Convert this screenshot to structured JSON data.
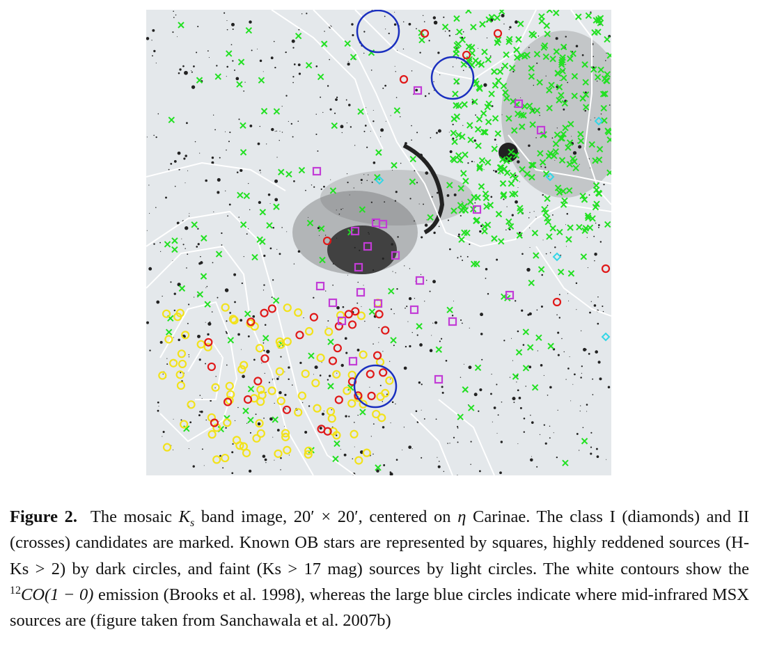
{
  "figure": {
    "label": "Figure 2.",
    "caption": [
      "The mosaic",
      "K",
      "s",
      "band image, 20′ × 20′, centered on",
      "η",
      "Carinae. The class I (diamonds) and II (crosses) candidates are marked. Known OB stars are represented by squares, highly reddened sources (H-Ks > 2) by dark circles, and faint (Ks > 17 mag) sources by light circles. The white contours show the",
      "12",
      "CO(1 − 0)",
      "emission (Brooks et al. 1998), whereas the large blue circles indicate where mid-infrared MSX sources are (figure taken from Sanchawala et al. 2007b)"
    ]
  }
}
